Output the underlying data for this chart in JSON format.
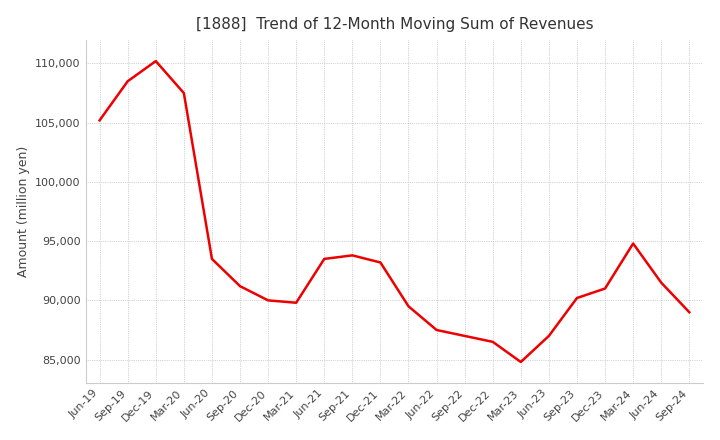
{
  "title": "[1888]  Trend of 12-Month Moving Sum of Revenues",
  "ylabel": "Amount (million yen)",
  "ylim": [
    83000,
    112000
  ],
  "yticks": [
    85000,
    90000,
    95000,
    100000,
    105000,
    110000
  ],
  "line_color": "#ee0000",
  "background_color": "#ffffff",
  "plot_bg_color": "#ffffff",
  "grid_color": "#aaaaaa",
  "dates": [
    "Jun-19",
    "Sep-19",
    "Dec-19",
    "Mar-20",
    "Jun-20",
    "Sep-20",
    "Dec-20",
    "Mar-21",
    "Jun-21",
    "Sep-21",
    "Dec-21",
    "Mar-22",
    "Jun-22",
    "Sep-22",
    "Dec-22",
    "Mar-23",
    "Jun-23",
    "Sep-23",
    "Dec-23",
    "Mar-24",
    "Jun-24",
    "Sep-24"
  ],
  "values": [
    105200,
    108500,
    110200,
    107500,
    93500,
    91200,
    90000,
    89800,
    93500,
    93800,
    93200,
    89500,
    87500,
    87000,
    86500,
    84800,
    87000,
    90200,
    91000,
    94800,
    91500,
    89000
  ]
}
